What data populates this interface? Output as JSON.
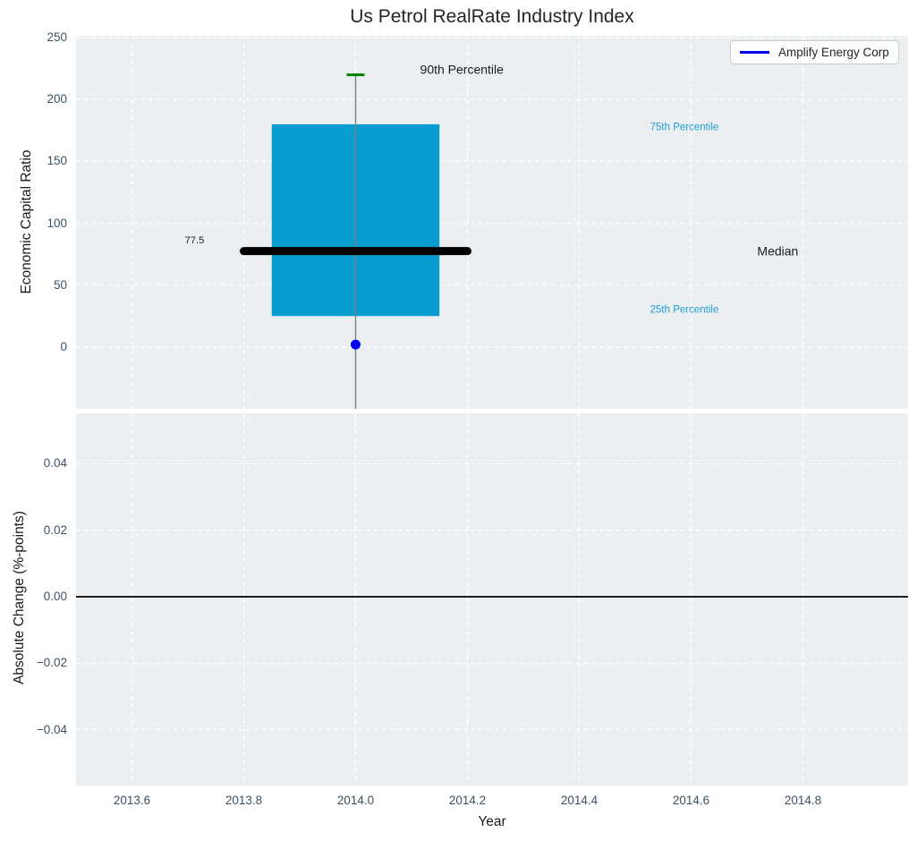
{
  "style": {
    "figure_background": "#ffffff",
    "axes_background": "#ebeff1",
    "grid_color": "#ffffff",
    "tick_color": "#3d5166",
    "text_color": "#1a1a1a",
    "title_color": "#262626"
  },
  "chart_data": [
    {
      "type": "boxplot",
      "title": "Us Petrol RealRate Industry Index",
      "ylabel": "Economic Capital Ratio",
      "xlim": [
        2013.5,
        2014.988
      ],
      "ylim": [
        -50,
        251.5
      ],
      "grid": "white-dashed",
      "show_xtick_labels": false,
      "xticks": [
        {
          "v": 2013.6,
          "label": "2013.6"
        },
        {
          "v": 2013.8,
          "label": "2013.8"
        },
        {
          "v": 2014.0,
          "label": "2014.0"
        },
        {
          "v": 2014.2,
          "label": "2014.2"
        },
        {
          "v": 2014.4,
          "label": "2014.4"
        },
        {
          "v": 2014.6,
          "label": "2014.6"
        },
        {
          "v": 2014.8,
          "label": "2014.8"
        }
      ],
      "yticks": [
        {
          "v": 0,
          "label": "0"
        },
        {
          "v": 50,
          "label": "50"
        },
        {
          "v": 100,
          "label": "100"
        },
        {
          "v": 150,
          "label": "150"
        },
        {
          "v": 200,
          "label": "200"
        },
        {
          "v": 250,
          "label": "250"
        }
      ],
      "boxplot": {
        "x_center": 2014.0,
        "box_half_width": 0.15,
        "median_half_width": 0.2,
        "cap_half_width": 0.016,
        "q1": 25,
        "q3": 180,
        "median": 77.5,
        "whisker_high": 220,
        "whisker_low_clipped_at_axis_bottom": true,
        "colors": {
          "box": "#089dd1",
          "median": "#000000",
          "cap": "#008000",
          "whisker": "#808080"
        }
      },
      "points": [
        {
          "x": 2014.0,
          "y": 2,
          "color": "#0000ee",
          "label": "Amplify Energy Corp"
        }
      ],
      "annotations": [
        {
          "text": "90th Percentile",
          "x": 2014.19,
          "y": 224,
          "color": "#1a1a1a",
          "size": 14
        },
        {
          "text": "77.5",
          "x": 2013.712,
          "y": 86,
          "color": "#1a1a1a",
          "size": 11
        },
        {
          "text": "Median",
          "x": 2014.755,
          "y": 77,
          "color": "#1a1a1a",
          "size": 14
        },
        {
          "text": "75th Percentile",
          "x": 2014.588,
          "y": 177,
          "color": "#1f9dd4",
          "size": 11.5
        },
        {
          "text": "25th Percentile",
          "x": 2014.588,
          "y": 29.5,
          "color": "#1f9dd4",
          "size": 11.5
        }
      ],
      "legend": {
        "position": "upper-right",
        "entries": [
          {
            "label": "Amplify Energy Corp",
            "color": "#0000ee"
          }
        ]
      }
    },
    {
      "type": "line",
      "xlabel": "Year",
      "ylabel": "Absolute Change (%-points)",
      "xlim": [
        2013.5,
        2014.988
      ],
      "ylim": [
        -0.0568,
        0.0552
      ],
      "grid": "white-dashed",
      "show_xtick_labels": true,
      "xticks": [
        {
          "v": 2013.6,
          "label": "2013.6"
        },
        {
          "v": 2013.8,
          "label": "2013.8"
        },
        {
          "v": 2014.0,
          "label": "2014.0"
        },
        {
          "v": 2014.2,
          "label": "2014.2"
        },
        {
          "v": 2014.4,
          "label": "2014.4"
        },
        {
          "v": 2014.6,
          "label": "2014.6"
        },
        {
          "v": 2014.8,
          "label": "2014.8"
        }
      ],
      "yticks": [
        {
          "v": 0.04,
          "label": "0.04"
        },
        {
          "v": 0.02,
          "label": "0.02"
        },
        {
          "v": 0.0,
          "label": "0.00"
        },
        {
          "v": -0.02,
          "label": "−0.02"
        },
        {
          "v": -0.04,
          "label": "−0.04"
        }
      ],
      "hline": {
        "y": 0,
        "color": "#000000",
        "width": 1.8
      },
      "series": []
    }
  ]
}
